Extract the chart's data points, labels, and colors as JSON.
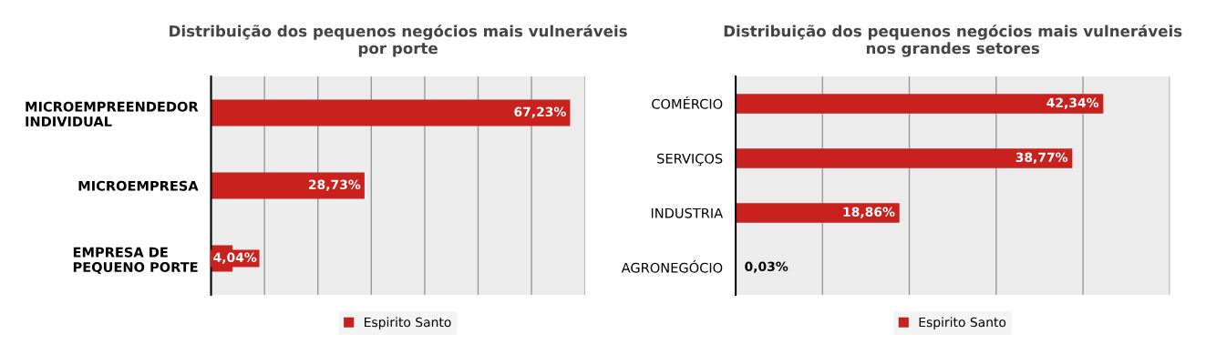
{
  "chart_data": [
    {
      "type": "bar",
      "orientation": "horizontal",
      "title": "Distribuição dos pequenos negócios mais vulneráveis\npor porte",
      "categories": [
        "MICROEMPREENDEDOR\nINDIVIDUAL",
        "MICROEMPRESA",
        "EMPRESA DE\nPEQUENO PORTE"
      ],
      "series": [
        {
          "name": "Espirito Santo",
          "color": "#c9211e",
          "values": [
            67.23,
            28.73,
            4.04
          ],
          "value_labels": [
            "67,23%",
            "28,73%",
            "4,04%"
          ]
        }
      ],
      "xlim": [
        0,
        70
      ],
      "xticks": [
        {
          "value": 0,
          "label": null
        },
        {
          "value": 10,
          "label": null
        },
        {
          "value": 20,
          "label": null
        },
        {
          "value": 30,
          "label": null
        },
        {
          "value": 40,
          "label": null
        },
        {
          "value": 50,
          "label": null
        },
        {
          "value": 60,
          "label": null
        },
        {
          "value": 70,
          "label": null
        }
      ],
      "grid": "x",
      "legend": "bottom",
      "tick_labels": "y"
    },
    {
      "type": "bar",
      "orientation": "horizontal",
      "title": "Distribuição dos pequenos negócios mais vulneráveis\nnos grandes setores",
      "categories": [
        "COMÉRCIO",
        "SERVIÇOS",
        "INDUSTRIA",
        "AGRONEGÓCIO"
      ],
      "series": [
        {
          "name": "Espirito Santo",
          "color": "#c9211e",
          "values": [
            42.34,
            38.77,
            18.86,
            0.03
          ],
          "value_labels": [
            "42,34%",
            "38,77%",
            "18,86%",
            "0,03%"
          ]
        }
      ],
      "xlim": [
        0,
        50
      ],
      "xticks": [
        {
          "value": 0,
          "label": null
        },
        {
          "value": 10,
          "label": null
        },
        {
          "value": 20,
          "label": null
        },
        {
          "value": 30,
          "label": null
        },
        {
          "value": 40,
          "label": null
        },
        {
          "value": 50,
          "label": null
        }
      ],
      "grid": "x",
      "legend": "bottom",
      "tick_labels": "y"
    }
  ]
}
